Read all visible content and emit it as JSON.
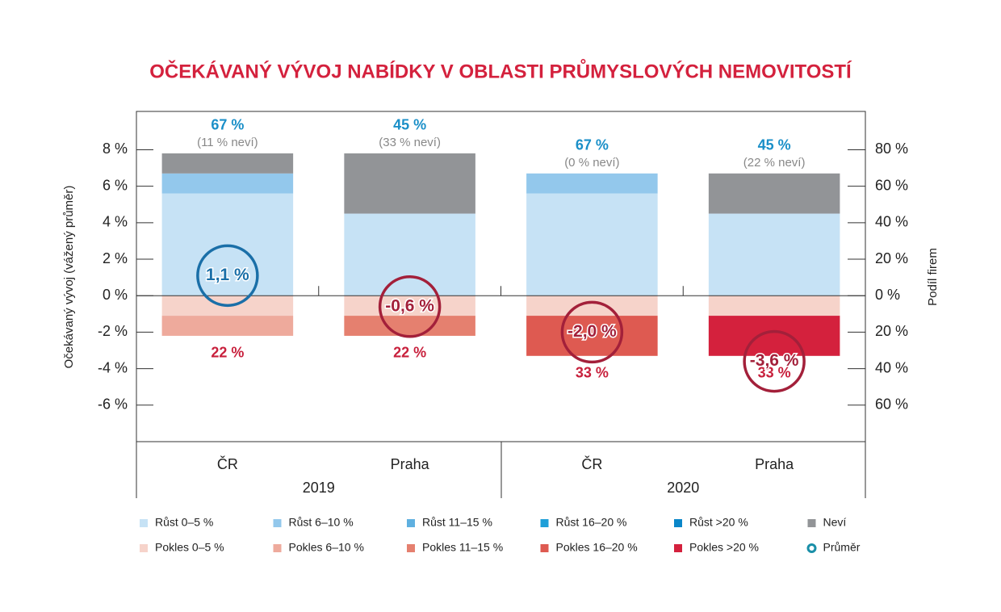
{
  "chart_data": {
    "type": "bar",
    "stacked": true,
    "title": "OČEKÁVANÝ VÝVOJ NABÍDKY V OBLASTI PRŮMYSLOVÝCH NEMOVITOSTÍ",
    "ylabel": "Očekávaný vývoj (vážený průměr)",
    "y2label": "Podíl firem",
    "categories": [
      "ČR",
      "Praha",
      "ČR",
      "Praha"
    ],
    "groups": [
      "2019",
      "2020"
    ],
    "ylim": [
      -8,
      10.1
    ],
    "yticks": [
      {
        "value": 8,
        "label": "8 %"
      },
      {
        "value": 6,
        "label": "6 %"
      },
      {
        "value": 4,
        "label": "4 %"
      },
      {
        "value": 2,
        "label": "2 %"
      },
      {
        "value": 0,
        "label": "0 %"
      },
      {
        "value": -2,
        "label": "-2 %"
      },
      {
        "value": -4,
        "label": "-4 %"
      },
      {
        "value": -6,
        "label": "-6 %"
      }
    ],
    "y2lim": [
      -80,
      101
    ],
    "y2ticks": [
      {
        "value": 80,
        "label": "80 %"
      },
      {
        "value": 60,
        "label": "60 %"
      },
      {
        "value": 40,
        "label": "40 %"
      },
      {
        "value": 20,
        "label": "20 %"
      },
      {
        "value": 0,
        "label": "0 %"
      },
      {
        "value": -20,
        "label": "20 %"
      },
      {
        "value": -40,
        "label": "40 %"
      },
      {
        "value": -60,
        "label": "60 %"
      }
    ],
    "series": [
      {
        "name": "Růst 0–5 %",
        "color": "#c6e2f5",
        "axis": "y2",
        "values": [
          56,
          45,
          56,
          45
        ]
      },
      {
        "name": "Růst 6–10 %",
        "color": "#93c8ec",
        "axis": "y2",
        "values": [
          11,
          0,
          11,
          0
        ]
      },
      {
        "name": "Růst 11–15 %",
        "color": "#5fb0e0",
        "axis": "y2",
        "values": [
          0,
          0,
          0,
          0
        ]
      },
      {
        "name": "Růst 16–20 %",
        "color": "#1e9fd8",
        "axis": "y2",
        "values": [
          0,
          0,
          0,
          0
        ]
      },
      {
        "name": "Růst >20 %",
        "color": "#0a86c8",
        "axis": "y2",
        "values": [
          0,
          0,
          0,
          0
        ]
      },
      {
        "name": "Neví",
        "color": "#929497",
        "axis": "y2",
        "values": [
          11,
          33,
          0,
          22
        ]
      },
      {
        "name": "Pokles 0–5 %",
        "color": "#f6d3ca",
        "axis": "y2",
        "values": [
          -11,
          -11,
          -11,
          -11
        ]
      },
      {
        "name": "Pokles 6–10 %",
        "color": "#eeaa9c",
        "axis": "y2",
        "values": [
          -11,
          0,
          0,
          0
        ]
      },
      {
        "name": "Pokles 11–15 %",
        "color": "#e5806f",
        "axis": "y2",
        "values": [
          0,
          -11,
          0,
          0
        ]
      },
      {
        "name": "Pokles 16–20 %",
        "color": "#de5a51",
        "axis": "y2",
        "values": [
          0,
          0,
          -22,
          0
        ]
      },
      {
        "name": "Pokles >20 %",
        "color": "#d4213d",
        "axis": "y2",
        "values": [
          0,
          0,
          0,
          -22
        ]
      }
    ],
    "growth_labels": [
      "67 %",
      "45 %",
      "67 %",
      "45 %"
    ],
    "unknown_labels": [
      "(11 % neví)",
      "(33 % neví)",
      "(0 % neví)",
      "(22 % neví)"
    ],
    "decline_labels": [
      "22 %",
      "22 %",
      "33 %",
      "33 %"
    ],
    "average": {
      "name": "Průměr",
      "colors": [
        "#1a6fa8",
        "#a3203a",
        "#a3203a",
        "#a3203a"
      ],
      "values": [
        1.1,
        -0.6,
        -2.0,
        -3.6
      ],
      "value_labels": [
        "1,1 %",
        "-0,6 %",
        "-2,0 %",
        "-3,6 %"
      ]
    }
  }
}
